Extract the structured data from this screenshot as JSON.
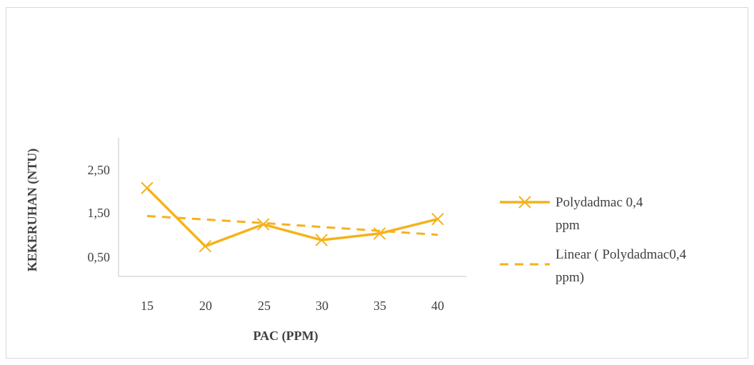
{
  "chart_data": {
    "type": "line",
    "xlabel": "PAC (PPM)",
    "ylabel": "KEKERUHAN (NTU)",
    "categories": [
      "15",
      "20",
      "25",
      "30",
      "35",
      "40"
    ],
    "y_ticks": [
      "2,50",
      "1,50",
      "0,50"
    ],
    "y_tick_values": [
      2.5,
      1.5,
      0.5
    ],
    "ylim": [
      0,
      3.5
    ],
    "grid": false,
    "legend_position": "right",
    "series": [
      {
        "name": "Polydadmac 0,4 ppm",
        "name_lines": [
          "Polydadmac 0,4",
          "ppm"
        ],
        "values": [
          2.12,
          0.79,
          1.29,
          0.93,
          1.08,
          1.41
        ],
        "color": "#f5b21a",
        "style": "solid",
        "marker": "x"
      },
      {
        "name": "Linear ( Polydadmac0,4 ppm)",
        "name_lines": [
          "Linear ( Polydadmac0,4",
          "ppm)"
        ],
        "values": [
          1.48,
          1.4,
          1.32,
          1.23,
          1.14,
          1.05
        ],
        "color": "#f5b21a",
        "style": "dashed",
        "marker": "none"
      }
    ]
  }
}
